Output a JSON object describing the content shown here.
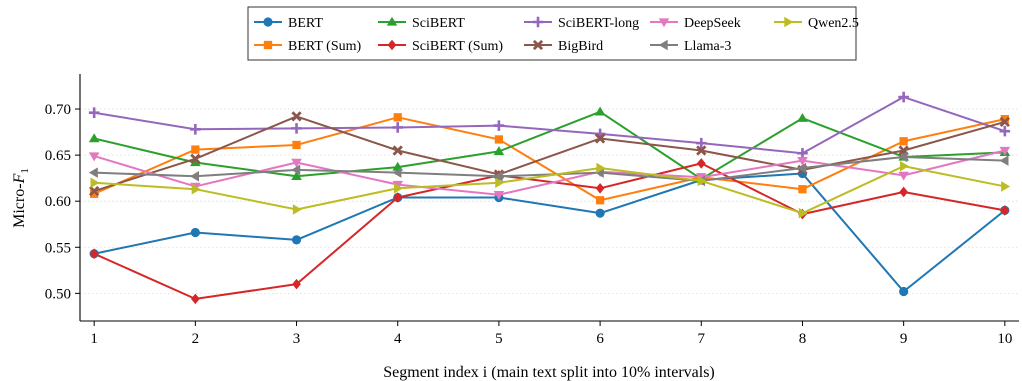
{
  "chart_data": {
    "type": "line",
    "title": "",
    "xlabel": "Segment index i (main text split into 10% intervals)",
    "ylabel_main": "Micro-",
    "ylabel_var": "F",
    "ylabel_sub": "1",
    "x": [
      1,
      2,
      3,
      4,
      5,
      6,
      7,
      8,
      9,
      10
    ],
    "xlim": [
      0.86,
      10.14
    ],
    "ylim": [
      0.47,
      0.738
    ],
    "yticks": [
      0.5,
      0.55,
      0.6,
      0.65,
      0.7
    ],
    "ytick_labels": [
      "0.50",
      "0.55",
      "0.60",
      "0.65",
      "0.70"
    ],
    "xtick_labels": [
      "1",
      "2",
      "3",
      "4",
      "5",
      "6",
      "7",
      "8",
      "9",
      "10"
    ],
    "grid": "horizontal-dotted",
    "legend_position": "top-center",
    "series": [
      {
        "name": "BERT",
        "color": "#1f77b4",
        "marker": "circle",
        "values": [
          0.543,
          0.566,
          0.558,
          0.604,
          0.604,
          0.587,
          0.623,
          0.63,
          0.502,
          0.59
        ]
      },
      {
        "name": "BERT (Sum)",
        "color": "#ff7f0e",
        "marker": "square",
        "values": [
          0.608,
          0.656,
          0.661,
          0.691,
          0.667,
          0.601,
          0.626,
          0.613,
          0.665,
          0.689
        ]
      },
      {
        "name": "SciBERT",
        "color": "#2ca02c",
        "marker": "triangle-up",
        "values": [
          0.668,
          0.642,
          0.627,
          0.637,
          0.654,
          0.697,
          0.624,
          0.69,
          0.648,
          0.653
        ]
      },
      {
        "name": "SciBERT (Sum)",
        "color": "#d62728",
        "marker": "diamond",
        "values": [
          0.543,
          0.494,
          0.51,
          0.604,
          0.628,
          0.614,
          0.641,
          0.586,
          0.61,
          0.59
        ]
      },
      {
        "name": "SciBERT-long",
        "color": "#9467bd",
        "marker": "plus",
        "values": [
          0.696,
          0.678,
          0.679,
          0.68,
          0.682,
          0.673,
          0.663,
          0.652,
          0.713,
          0.676
        ]
      },
      {
        "name": "BigBird",
        "color": "#8c564b",
        "marker": "x",
        "values": [
          0.611,
          0.646,
          0.692,
          0.655,
          0.629,
          0.668,
          0.655,
          0.634,
          0.655,
          0.686
        ]
      },
      {
        "name": "DeepSeek",
        "color": "#e377c2",
        "marker": "triangle-down",
        "values": [
          0.649,
          0.616,
          0.642,
          0.618,
          0.607,
          0.632,
          0.626,
          0.644,
          0.628,
          0.655
        ]
      },
      {
        "name": "Llama-3",
        "color": "#7f7f7f",
        "marker": "triangle-left",
        "values": [
          0.631,
          0.627,
          0.634,
          0.631,
          0.627,
          0.631,
          0.622,
          0.636,
          0.648,
          0.644
        ]
      },
      {
        "name": "Qwen2.5",
        "color": "#bcbd22",
        "marker": "triangle-right",
        "values": [
          0.62,
          0.613,
          0.591,
          0.614,
          0.62,
          0.636,
          0.622,
          0.587,
          0.638,
          0.616
        ]
      }
    ]
  }
}
